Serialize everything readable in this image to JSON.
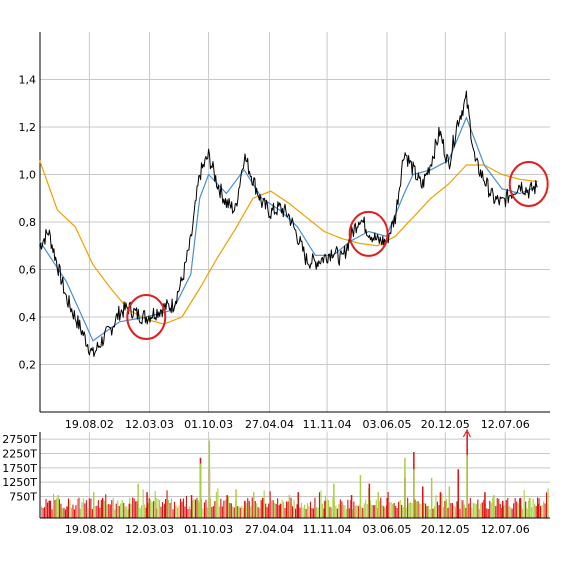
{
  "chart_data": [
    {
      "type": "line",
      "title": "",
      "xlabel": "",
      "ylabel": "",
      "ylim": [
        0.0,
        1.6
      ],
      "y_ticks": [
        "0,2",
        "0,4",
        "0,6",
        "0,8",
        "1,0",
        "1,2",
        "1,4"
      ],
      "y_tick_values": [
        0.2,
        0.4,
        0.6,
        0.8,
        1.0,
        1.2,
        1.4
      ],
      "x_ticks": [
        "19.08.02",
        "12.03.03",
        "01.10.03",
        "27.04.04",
        "11.11.04",
        "03.06.05",
        "20.12.05",
        "12.07.06"
      ],
      "grid": true,
      "series": [
        {
          "color": "#000000",
          "x": [
            "2002-03",
            "2002-04",
            "2002-05",
            "2002-06",
            "2002-07",
            "2002-08",
            "2002-09",
            "2002-10",
            "2002-11",
            "2002-12",
            "2003-01",
            "2003-02",
            "2003-03",
            "2003-04",
            "2003-05",
            "2003-06",
            "2003-07",
            "2003-08",
            "2003-09",
            "2003-10",
            "2003-11",
            "2003-12",
            "2004-01",
            "2004-02",
            "2004-03",
            "2004-04",
            "2004-05",
            "2004-06",
            "2004-07",
            "2004-08",
            "2004-09",
            "2004-10",
            "2004-11",
            "2004-12",
            "2005-01",
            "2005-02",
            "2005-03",
            "2005-04",
            "2005-05",
            "2005-06",
            "2005-07",
            "2005-08",
            "2005-09",
            "2005-10",
            "2005-11",
            "2005-12",
            "2006-01",
            "2006-02",
            "2006-03",
            "2006-04",
            "2006-05",
            "2006-06",
            "2006-07",
            "2006-08",
            "2006-09",
            "2006-10",
            "2006-11"
          ],
          "values": [
            0.7,
            0.76,
            0.62,
            0.48,
            0.4,
            0.32,
            0.24,
            0.3,
            0.35,
            0.42,
            0.44,
            0.41,
            0.4,
            0.42,
            0.44,
            0.45,
            0.55,
            0.72,
            1.0,
            1.08,
            0.96,
            0.88,
            0.85,
            1.08,
            0.98,
            0.88,
            0.84,
            0.86,
            0.83,
            0.74,
            0.64,
            0.63,
            0.65,
            0.68,
            0.64,
            0.74,
            0.82,
            0.76,
            0.72,
            0.72,
            0.82,
            1.1,
            1.02,
            0.95,
            1.05,
            1.18,
            1.04,
            1.22,
            1.32,
            1.05,
            0.98,
            0.9,
            0.88,
            0.92,
            0.96,
            0.93,
            0.95
          ]
        },
        {
          "color": "#4a8fcf",
          "x": [
            "2002-03",
            "2002-06",
            "2002-09",
            "2002-12",
            "2003-03",
            "2003-06",
            "2003-08",
            "2003-09",
            "2003-10",
            "2003-12",
            "2004-02",
            "2004-04",
            "2004-06",
            "2004-08",
            "2004-10",
            "2004-12",
            "2005-02",
            "2005-04",
            "2005-06",
            "2005-08",
            "2005-09",
            "2005-11",
            "2006-01",
            "2006-03",
            "2006-05",
            "2006-07",
            "2006-09",
            "2006-11"
          ],
          "values": [
            0.72,
            0.55,
            0.3,
            0.38,
            0.4,
            0.43,
            0.58,
            0.9,
            1.0,
            0.92,
            1.02,
            0.9,
            0.85,
            0.78,
            0.66,
            0.66,
            0.72,
            0.76,
            0.74,
            0.92,
            1.0,
            1.02,
            1.06,
            1.24,
            1.04,
            0.94,
            0.92,
            0.95
          ]
        },
        {
          "color": "#f0a000",
          "x": [
            "2002-03",
            "2002-05",
            "2002-07",
            "2002-09",
            "2002-11",
            "2003-01",
            "2003-03",
            "2003-05",
            "2003-07",
            "2003-09",
            "2003-11",
            "2004-01",
            "2004-03",
            "2004-05",
            "2004-07",
            "2004-09",
            "2004-11",
            "2005-01",
            "2005-03",
            "2005-05",
            "2005-07",
            "2005-09",
            "2005-11",
            "2006-01",
            "2006-03",
            "2006-05",
            "2006-07",
            "2006-09",
            "2006-11"
          ],
          "values": [
            1.06,
            0.85,
            0.78,
            0.62,
            0.52,
            0.43,
            0.39,
            0.37,
            0.4,
            0.52,
            0.65,
            0.77,
            0.9,
            0.93,
            0.88,
            0.82,
            0.76,
            0.73,
            0.71,
            0.7,
            0.74,
            0.82,
            0.9,
            0.96,
            1.04,
            1.04,
            1.0,
            0.98,
            0.97
          ]
        }
      ],
      "annotations": [
        {
          "shape": "circle",
          "color": "#e02020",
          "x": "2003-03",
          "y": 0.4
        },
        {
          "shape": "circle",
          "color": "#e02020",
          "x": "2005-04",
          "y": 0.75
        },
        {
          "shape": "circle",
          "color": "#e02020",
          "x": "2006-10",
          "y": 0.96
        }
      ]
    },
    {
      "type": "bar",
      "title": "",
      "xlabel": "",
      "ylabel": "",
      "ylim": [
        0,
        3000
      ],
      "y_ticks": [
        "750T",
        "1250T",
        "1750T",
        "2250T",
        "2750T"
      ],
      "y_tick_values": [
        750,
        1250,
        1750,
        2250,
        2750
      ],
      "x_ticks": [
        "19.08.02",
        "12.03.03",
        "01.10.03",
        "27.04.04",
        "11.11.04",
        "03.06.05",
        "20.12.05",
        "12.07.06"
      ],
      "grid": true,
      "colors": [
        "#dd1111",
        "#a8d040"
      ],
      "series": [
        {
          "color": "#dd1111",
          "x": [
            "2002-04",
            "2002-06",
            "2002-10",
            "2003-01",
            "2003-03",
            "2003-05",
            "2003-08",
            "2003-09",
            "2003-10",
            "2003-12",
            "2004-02",
            "2004-04",
            "2004-06",
            "2004-08",
            "2004-11",
            "2005-02",
            "2005-04",
            "2005-06",
            "2005-08",
            "2005-09",
            "2005-10",
            "2005-12",
            "2006-02",
            "2006-03",
            "2006-05",
            "2006-07",
            "2006-09",
            "2006-11"
          ],
          "values": [
            600,
            400,
            700,
            500,
            900,
            500,
            800,
            2100,
            1700,
            800,
            600,
            700,
            500,
            900,
            600,
            800,
            1200,
            700,
            1400,
            2300,
            1100,
            900,
            1700,
            3000,
            900,
            600,
            700,
            500
          ]
        },
        {
          "color": "#a8d040",
          "x": [
            "2002-05",
            "2002-09",
            "2003-02",
            "2003-04",
            "2003-09",
            "2003-10",
            "2004-01",
            "2004-03",
            "2004-07",
            "2004-12",
            "2005-03",
            "2005-05",
            "2005-08",
            "2005-09",
            "2005-11",
            "2006-01",
            "2006-03",
            "2006-06",
            "2006-10"
          ],
          "values": [
            800,
            900,
            1200,
            700,
            1900,
            2700,
            1000,
            900,
            800,
            1200,
            1500,
            900,
            2100,
            1700,
            1400,
            1100,
            2200,
            800,
            700
          ]
        }
      ]
    }
  ]
}
